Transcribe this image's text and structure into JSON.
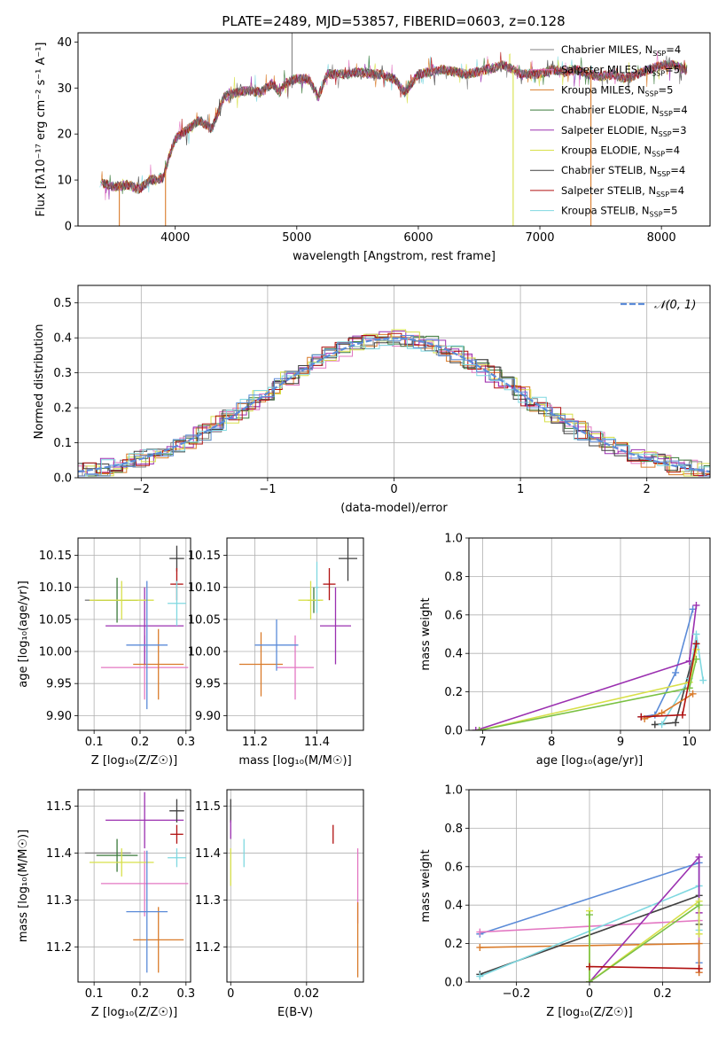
{
  "title": "PLATE=2489, MJD=53857, FIBERID=0603, z=0.128",
  "series": [
    {
      "name": "Chabrier MILES",
      "nssp": "4",
      "color": "#808080"
    },
    {
      "name": "Salpeter MILES",
      "nssp": "5",
      "color": "#e377c2"
    },
    {
      "name": "Kroupa MILES",
      "nssp": "5",
      "color": "#d97b2a"
    },
    {
      "name": "Chabrier ELODIE",
      "nssp": "4",
      "color": "#3a7a3a"
    },
    {
      "name": "Salpeter ELODIE",
      "nssp": "3",
      "color": "#9b30b0"
    },
    {
      "name": "Kroupa ELODIE",
      "nssp": "4",
      "color": "#d8e04a"
    },
    {
      "name": "Chabrier STELIB",
      "nssp": "4",
      "color": "#404040"
    },
    {
      "name": "Salpeter STELIB",
      "nssp": "4",
      "color": "#b01010"
    },
    {
      "name": "Kroupa STELIB",
      "nssp": "5",
      "color": "#7fd8e0"
    }
  ],
  "extra_colors": {
    "blue": "#5b8bd8",
    "green": "#7ac143",
    "yellowgreen": "#c7e86a"
  },
  "chart_data": [
    {
      "type": "line",
      "xlabel": "wavelength [Angstrom, rest frame]",
      "ylabel": "Flux [fλ10⁻¹⁷ erg cm⁻² s⁻¹ A⁻¹]",
      "xlim": [
        3200,
        8400
      ],
      "ylim": [
        0,
        42
      ],
      "xticks": [
        4000,
        5000,
        6000,
        7000,
        8000
      ],
      "yticks": [
        0,
        10,
        20,
        30,
        40
      ],
      "legend": "right",
      "spectrum": [
        [
          3380,
          9.5
        ],
        [
          3500,
          8.5
        ],
        [
          3600,
          9
        ],
        [
          3700,
          8
        ],
        [
          3800,
          10
        ],
        [
          3900,
          10.5
        ],
        [
          3950,
          15
        ],
        [
          4000,
          19
        ],
        [
          4100,
          21
        ],
        [
          4200,
          23
        ],
        [
          4300,
          21
        ],
        [
          4400,
          28
        ],
        [
          4500,
          29
        ],
        [
          4600,
          29.5
        ],
        [
          4700,
          29
        ],
        [
          4800,
          31
        ],
        [
          4860,
          29
        ],
        [
          4900,
          31
        ],
        [
          5000,
          32
        ],
        [
          5100,
          32
        ],
        [
          5175,
          28
        ],
        [
          5250,
          33
        ],
        [
          5400,
          33
        ],
        [
          5500,
          33.5
        ],
        [
          5600,
          33
        ],
        [
          5700,
          33
        ],
        [
          5800,
          32
        ],
        [
          5890,
          29
        ],
        [
          6000,
          33
        ],
        [
          6200,
          34
        ],
        [
          6400,
          33
        ],
        [
          6563,
          34
        ],
        [
          6700,
          35
        ],
        [
          6850,
          33
        ],
        [
          7000,
          33
        ],
        [
          7100,
          34
        ],
        [
          7200,
          33.5
        ],
        [
          7300,
          34
        ],
        [
          7400,
          33
        ],
        [
          7500,
          32.5
        ],
        [
          7600,
          33
        ],
        [
          7700,
          32
        ],
        [
          7800,
          33
        ],
        [
          7900,
          34
        ],
        [
          8000,
          35
        ],
        [
          8100,
          35
        ],
        [
          8200,
          34
        ]
      ]
    },
    {
      "type": "bar",
      "xlabel": "(data-model)/error",
      "ylabel": "Normed distribution",
      "xlim": [
        -2.5,
        2.5
      ],
      "ylim": [
        0,
        0.55
      ],
      "xticks": [
        -2,
        -1,
        0,
        1,
        2
      ],
      "yticks": [
        0.0,
        0.1,
        0.2,
        0.3,
        0.4,
        0.5
      ],
      "legend_label": "𝒩(0, 1)",
      "legend": "top-right",
      "gaussian": {
        "mean": 0,
        "sigma": 1
      }
    },
    {
      "type": "scatter",
      "xlabel": "Z [log₁₀(Z/Z☉)]",
      "ylabel": "age  [log₁₀(age/yr)]",
      "xlim": [
        0.065,
        0.31
      ],
      "ylim": [
        9.877,
        10.177
      ],
      "xticks": [
        0.1,
        0.2,
        0.3
      ],
      "yticks": [
        9.9,
        9.95,
        10.0,
        10.05,
        10.1,
        10.15
      ],
      "points": [
        {
          "s": "Chabrier MILES",
          "x": 0.13,
          "y": 10.08,
          "ex": 0.05,
          "ey": 0.0
        },
        {
          "s": "Salpeter MILES",
          "x": 0.21,
          "y": 9.975,
          "ex": 0.095,
          "ey": 0.05
        },
        {
          "s": "Kroupa MILES",
          "x": 0.24,
          "y": 9.98,
          "ex": 0.055,
          "ey": 0.055
        },
        {
          "s": "Chabrier ELODIE",
          "x": 0.15,
          "y": 10.08,
          "ex": 0.045,
          "ey": 0.035
        },
        {
          "s": "Salpeter ELODIE",
          "x": 0.21,
          "y": 10.04,
          "ex": 0.085,
          "ey": 0.06
        },
        {
          "s": "Kroupa ELODIE",
          "x": 0.16,
          "y": 10.08,
          "ex": 0.07,
          "ey": 0.03
        },
        {
          "s": "Chabrier STELIB",
          "x": 0.28,
          "y": 10.145,
          "ex": 0.016,
          "ey": 0.02
        },
        {
          "s": "Salpeter STELIB",
          "x": 0.28,
          "y": 10.105,
          "ex": 0.014,
          "ey": 0.025
        },
        {
          "s": "Kroupa STELIB",
          "x": 0.28,
          "y": 10.075,
          "ex": 0.02,
          "ey": 0.035
        },
        {
          "s": "blue",
          "x": 0.215,
          "y": 10.01,
          "ex": 0.045,
          "ey": 0.1
        }
      ]
    },
    {
      "type": "scatter",
      "xlabel": "mass [log₁₀(M/M☉)]",
      "ylabel": "",
      "xlim": [
        11.11,
        11.55
      ],
      "ylim": [
        9.877,
        10.177
      ],
      "xticks": [
        11.2,
        11.4
      ],
      "yticks": [
        9.9,
        9.95,
        10.0,
        10.05,
        10.1,
        10.15
      ],
      "points": [
        {
          "s": "Salpeter MILES",
          "x": 11.33,
          "y": 9.975,
          "ex": 0.06,
          "ey": 0.05
        },
        {
          "s": "Kroupa MILES",
          "x": 11.22,
          "y": 9.98,
          "ex": 0.07,
          "ey": 0.05
        },
        {
          "s": "blue",
          "x": 11.27,
          "y": 10.01,
          "ex": 0.07,
          "ey": 0.04
        },
        {
          "s": "Chabrier ELODIE",
          "x": 11.39,
          "y": 10.08,
          "ex": 0.02,
          "ey": 0.02
        },
        {
          "s": "Kroupa ELODIE",
          "x": 11.38,
          "y": 10.08,
          "ex": 0.04,
          "ey": 0.03
        },
        {
          "s": "Kroupa STELIB",
          "x": 11.4,
          "y": 10.1,
          "ex": 0.005,
          "ey": 0.04
        },
        {
          "s": "Salpeter ELODIE",
          "x": 11.46,
          "y": 10.04,
          "ex": 0.05,
          "ey": 0.06
        },
        {
          "s": "Salpeter STELIB",
          "x": 11.44,
          "y": 10.105,
          "ex": 0.02,
          "ey": 0.025
        },
        {
          "s": "Chabrier STELIB",
          "x": 11.5,
          "y": 10.145,
          "ex": 0.03,
          "ey": 0.035
        }
      ]
    },
    {
      "type": "line",
      "xlabel": "age  [log₁₀(age/yr)]",
      "ylabel": "mass weight",
      "xlim": [
        6.8,
        10.3
      ],
      "ylim": [
        0.0,
        1.0
      ],
      "xticks": [
        7,
        8,
        9,
        10
      ],
      "yticks": [
        0.0,
        0.2,
        0.4,
        0.6,
        0.8,
        1.0
      ],
      "lines": [
        {
          "s": "blue",
          "pts": [
            [
              9.3,
              0.07
            ],
            [
              9.5,
              0.08
            ],
            [
              9.8,
              0.3
            ],
            [
              10.05,
              0.63
            ]
          ]
        },
        {
          "s": "Salpeter ELODIE",
          "pts": [
            [
              6.9,
              0.0
            ],
            [
              10.0,
              0.36
            ],
            [
              10.1,
              0.65
            ]
          ]
        },
        {
          "s": "Chabrier STELIB",
          "pts": [
            [
              9.5,
              0.03
            ],
            [
              9.8,
              0.04
            ],
            [
              10.1,
              0.45
            ]
          ]
        },
        {
          "s": "Kroupa STELIB",
          "pts": [
            [
              9.6,
              0.03
            ],
            [
              10.0,
              0.27
            ],
            [
              10.1,
              0.5
            ],
            [
              10.2,
              0.26
            ]
          ]
        },
        {
          "s": "Kroupa MILES",
          "pts": [
            [
              9.35,
              0.06
            ],
            [
              9.6,
              0.09
            ],
            [
              10.05,
              0.19
            ]
          ]
        },
        {
          "s": "Kroupa ELODIE",
          "pts": [
            [
              6.95,
              0.0
            ],
            [
              10.0,
              0.25
            ],
            [
              10.1,
              0.42
            ]
          ]
        },
        {
          "s": "green",
          "pts": [
            [
              6.95,
              0.0
            ],
            [
              10.0,
              0.22
            ],
            [
              10.1,
              0.37
            ]
          ]
        },
        {
          "s": "Salpeter STELIB",
          "pts": [
            [
              9.3,
              0.07
            ],
            [
              9.9,
              0.08
            ],
            [
              10.1,
              0.45
            ]
          ]
        }
      ]
    },
    {
      "type": "scatter",
      "xlabel": "Z [log₁₀(Z/Z☉)]",
      "ylabel": "mass [log₁₀(M/M☉)]",
      "xlim": [
        0.065,
        0.31
      ],
      "ylim": [
        11.125,
        11.535
      ],
      "xticks": [
        0.1,
        0.2,
        0.3
      ],
      "yticks": [
        11.2,
        11.3,
        11.4,
        11.5
      ],
      "points": [
        {
          "s": "Chabrier MILES",
          "x": 0.13,
          "y": 11.4,
          "ex": 0.05,
          "ey": 0.0
        },
        {
          "s": "Salpeter MILES",
          "x": 0.21,
          "y": 11.335,
          "ex": 0.095,
          "ey": 0.07
        },
        {
          "s": "Kroupa MILES",
          "x": 0.24,
          "y": 11.215,
          "ex": 0.055,
          "ey": 0.07
        },
        {
          "s": "Chabrier ELODIE",
          "x": 0.15,
          "y": 11.395,
          "ex": 0.045,
          "ey": 0.035
        },
        {
          "s": "Salpeter ELODIE",
          "x": 0.21,
          "y": 11.47,
          "ex": 0.085,
          "ey": 0.06
        },
        {
          "s": "Kroupa ELODIE",
          "x": 0.16,
          "y": 11.38,
          "ex": 0.07,
          "ey": 0.03
        },
        {
          "s": "Chabrier STELIB",
          "x": 0.28,
          "y": 11.49,
          "ex": 0.016,
          "ey": 0.025
        },
        {
          "s": "Salpeter STELIB",
          "x": 0.28,
          "y": 11.44,
          "ex": 0.014,
          "ey": 0.02
        },
        {
          "s": "Kroupa STELIB",
          "x": 0.28,
          "y": 11.39,
          "ex": 0.02,
          "ey": 0.02
        },
        {
          "s": "blue",
          "x": 0.215,
          "y": 11.275,
          "ex": 0.045,
          "ey": 0.13
        }
      ]
    },
    {
      "type": "scatter",
      "xlabel": "E(B-V)",
      "ylabel": "",
      "xlim": [
        -0.001,
        0.035
      ],
      "ylim": [
        11.125,
        11.535
      ],
      "xticks": [
        0.0,
        0.02
      ],
      "yticks": [
        11.2,
        11.3,
        11.4,
        11.5
      ],
      "points": [
        {
          "s": "Chabrier STELIB",
          "x": 0.0,
          "y": 11.49,
          "ex": 0,
          "ey": 0.025
        },
        {
          "s": "Salpeter ELODIE",
          "x": 0.0,
          "y": 11.45,
          "ex": 0,
          "ey": 0.02
        },
        {
          "s": "Kroupa ELODIE",
          "x": 0.0,
          "y": 11.37,
          "ex": 0,
          "ey": 0.04
        },
        {
          "s": "Kroupa STELIB",
          "x": 0.0035,
          "y": 11.4,
          "ex": 0,
          "ey": 0.03
        },
        {
          "s": "Salpeter STELIB",
          "x": 0.027,
          "y": 11.44,
          "ex": 0,
          "ey": 0.02
        },
        {
          "s": "Salpeter MILES",
          "x": 0.0335,
          "y": 11.33,
          "ex": 0,
          "ey": 0.08
        },
        {
          "s": "Kroupa MILES",
          "x": 0.0335,
          "y": 11.215,
          "ex": 0,
          "ey": 0.08
        }
      ]
    },
    {
      "type": "line",
      "xlabel": "Z [log₁₀(Z/Z☉)]",
      "ylabel": "mass weight",
      "xlim": [
        -0.33,
        0.33
      ],
      "ylim": [
        0.0,
        1.0
      ],
      "xticks": [
        -0.2,
        0.0,
        0.2
      ],
      "yticks": [
        0.0,
        0.2,
        0.4,
        0.6,
        0.8,
        1.0
      ],
      "lines": [
        {
          "s": "blue",
          "pts": [
            [
              -0.3,
              0.25
            ],
            [
              0.3,
              0.62
            ],
            [
              0.3,
              0.1
            ]
          ]
        },
        {
          "s": "Salpeter MILES",
          "pts": [
            [
              -0.3,
              0.26
            ],
            [
              0.3,
              0.32
            ],
            [
              0.3,
              0.05
            ]
          ]
        },
        {
          "s": "Kroupa MILES",
          "pts": [
            [
              -0.3,
              0.18
            ],
            [
              0.3,
              0.2
            ],
            [
              0.3,
              0.05
            ]
          ]
        },
        {
          "s": "Chabrier STELIB",
          "pts": [
            [
              -0.3,
              0.04
            ],
            [
              0.3,
              0.45
            ],
            [
              0.3,
              0.3
            ]
          ]
        },
        {
          "s": "Kroupa STELIB",
          "pts": [
            [
              -0.3,
              0.03
            ],
            [
              0.3,
              0.5
            ],
            [
              0.3,
              0.27
            ]
          ]
        },
        {
          "s": "Salpeter ELODIE",
          "pts": [
            [
              0.0,
              0.0
            ],
            [
              0.3,
              0.65
            ],
            [
              0.3,
              0.36
            ]
          ]
        },
        {
          "s": "Kroupa ELODIE",
          "pts": [
            [
              0.0,
              0.37
            ],
            [
              0.0,
              0.0
            ],
            [
              0.3,
              0.42
            ],
            [
              0.3,
              0.25
            ]
          ]
        },
        {
          "s": "green",
          "pts": [
            [
              0.0,
              0.35
            ],
            [
              0.0,
              0.0
            ],
            [
              0.3,
              0.4
            ]
          ]
        },
        {
          "s": "Salpeter STELIB",
          "pts": [
            [
              0.0,
              0.08
            ],
            [
              0.3,
              0.07
            ]
          ]
        }
      ]
    }
  ]
}
